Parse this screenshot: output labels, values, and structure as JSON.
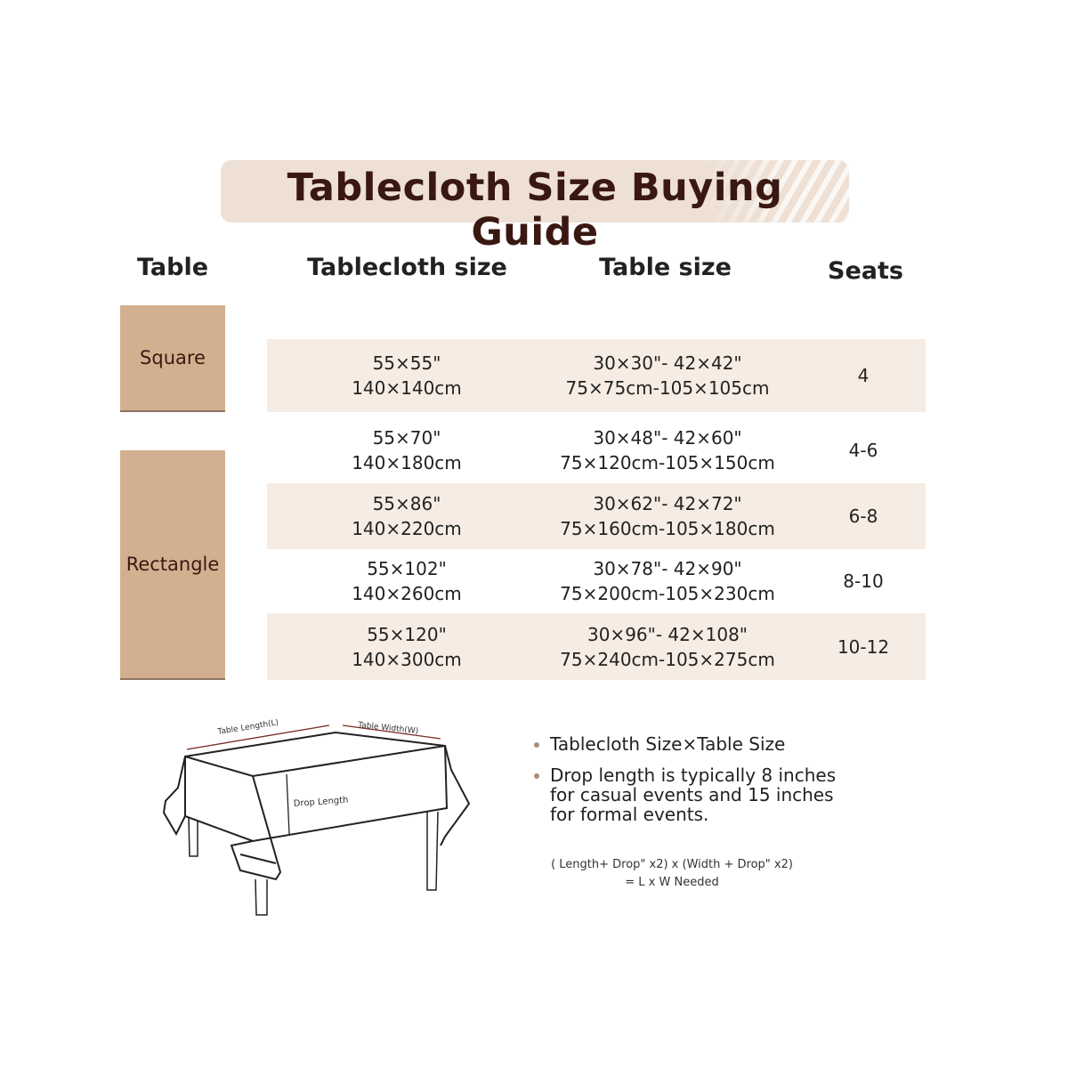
{
  "title": "Tablecloth Size Buying Guide",
  "headers": {
    "table": "Table",
    "tablecloth_size": "Tablecloth size",
    "table_size": "Table size",
    "seats": "Seats"
  },
  "types": {
    "square": "Square",
    "rectangle": "Rectangle"
  },
  "rows": [
    {
      "cloth_in": "55×55\"",
      "cloth_cm": "140×140cm",
      "table_in": "30×30\"- 42×42\"",
      "table_cm": "75×75cm-105×105cm",
      "seats": "4"
    },
    {
      "cloth_in": "55×70\"",
      "cloth_cm": "140×180cm",
      "table_in": "30×48\"- 42×60\"",
      "table_cm": "75×120cm-105×150cm",
      "seats": "4-6"
    },
    {
      "cloth_in": "55×86\"",
      "cloth_cm": "140×220cm",
      "table_in": "30×62\"- 42×72\"",
      "table_cm": "75×160cm-105×180cm",
      "seats": "6-8"
    },
    {
      "cloth_in": "55×102\"",
      "cloth_cm": "140×260cm",
      "table_in": "30×78\"- 42×90\"",
      "table_cm": "75×200cm-105×230cm",
      "seats": "8-10"
    },
    {
      "cloth_in": "55×120\"",
      "cloth_cm": "140×300cm",
      "table_in": "30×96\"- 42×108\"",
      "table_cm": "75×240cm-105×275cm",
      "seats": "10-12"
    }
  ],
  "diagram": {
    "length_label": "Table Length(L)",
    "width_label": "Table Width(W)",
    "drop_label": "Drop Length"
  },
  "notes": [
    "Tablecloth Size×Table Size",
    "Drop length is typically 8 inches for casual events and 15 inches for formal events."
  ],
  "formula": {
    "line1": "( Length+ Drop\" x2) x (Width + Drop\" x2)",
    "line2": "= L x W Needed"
  },
  "colors": {
    "title_bg": "#eee0d4",
    "title_text": "#3a1812",
    "type_bg": "#d2b08f",
    "row_band": "#f6ece3"
  }
}
